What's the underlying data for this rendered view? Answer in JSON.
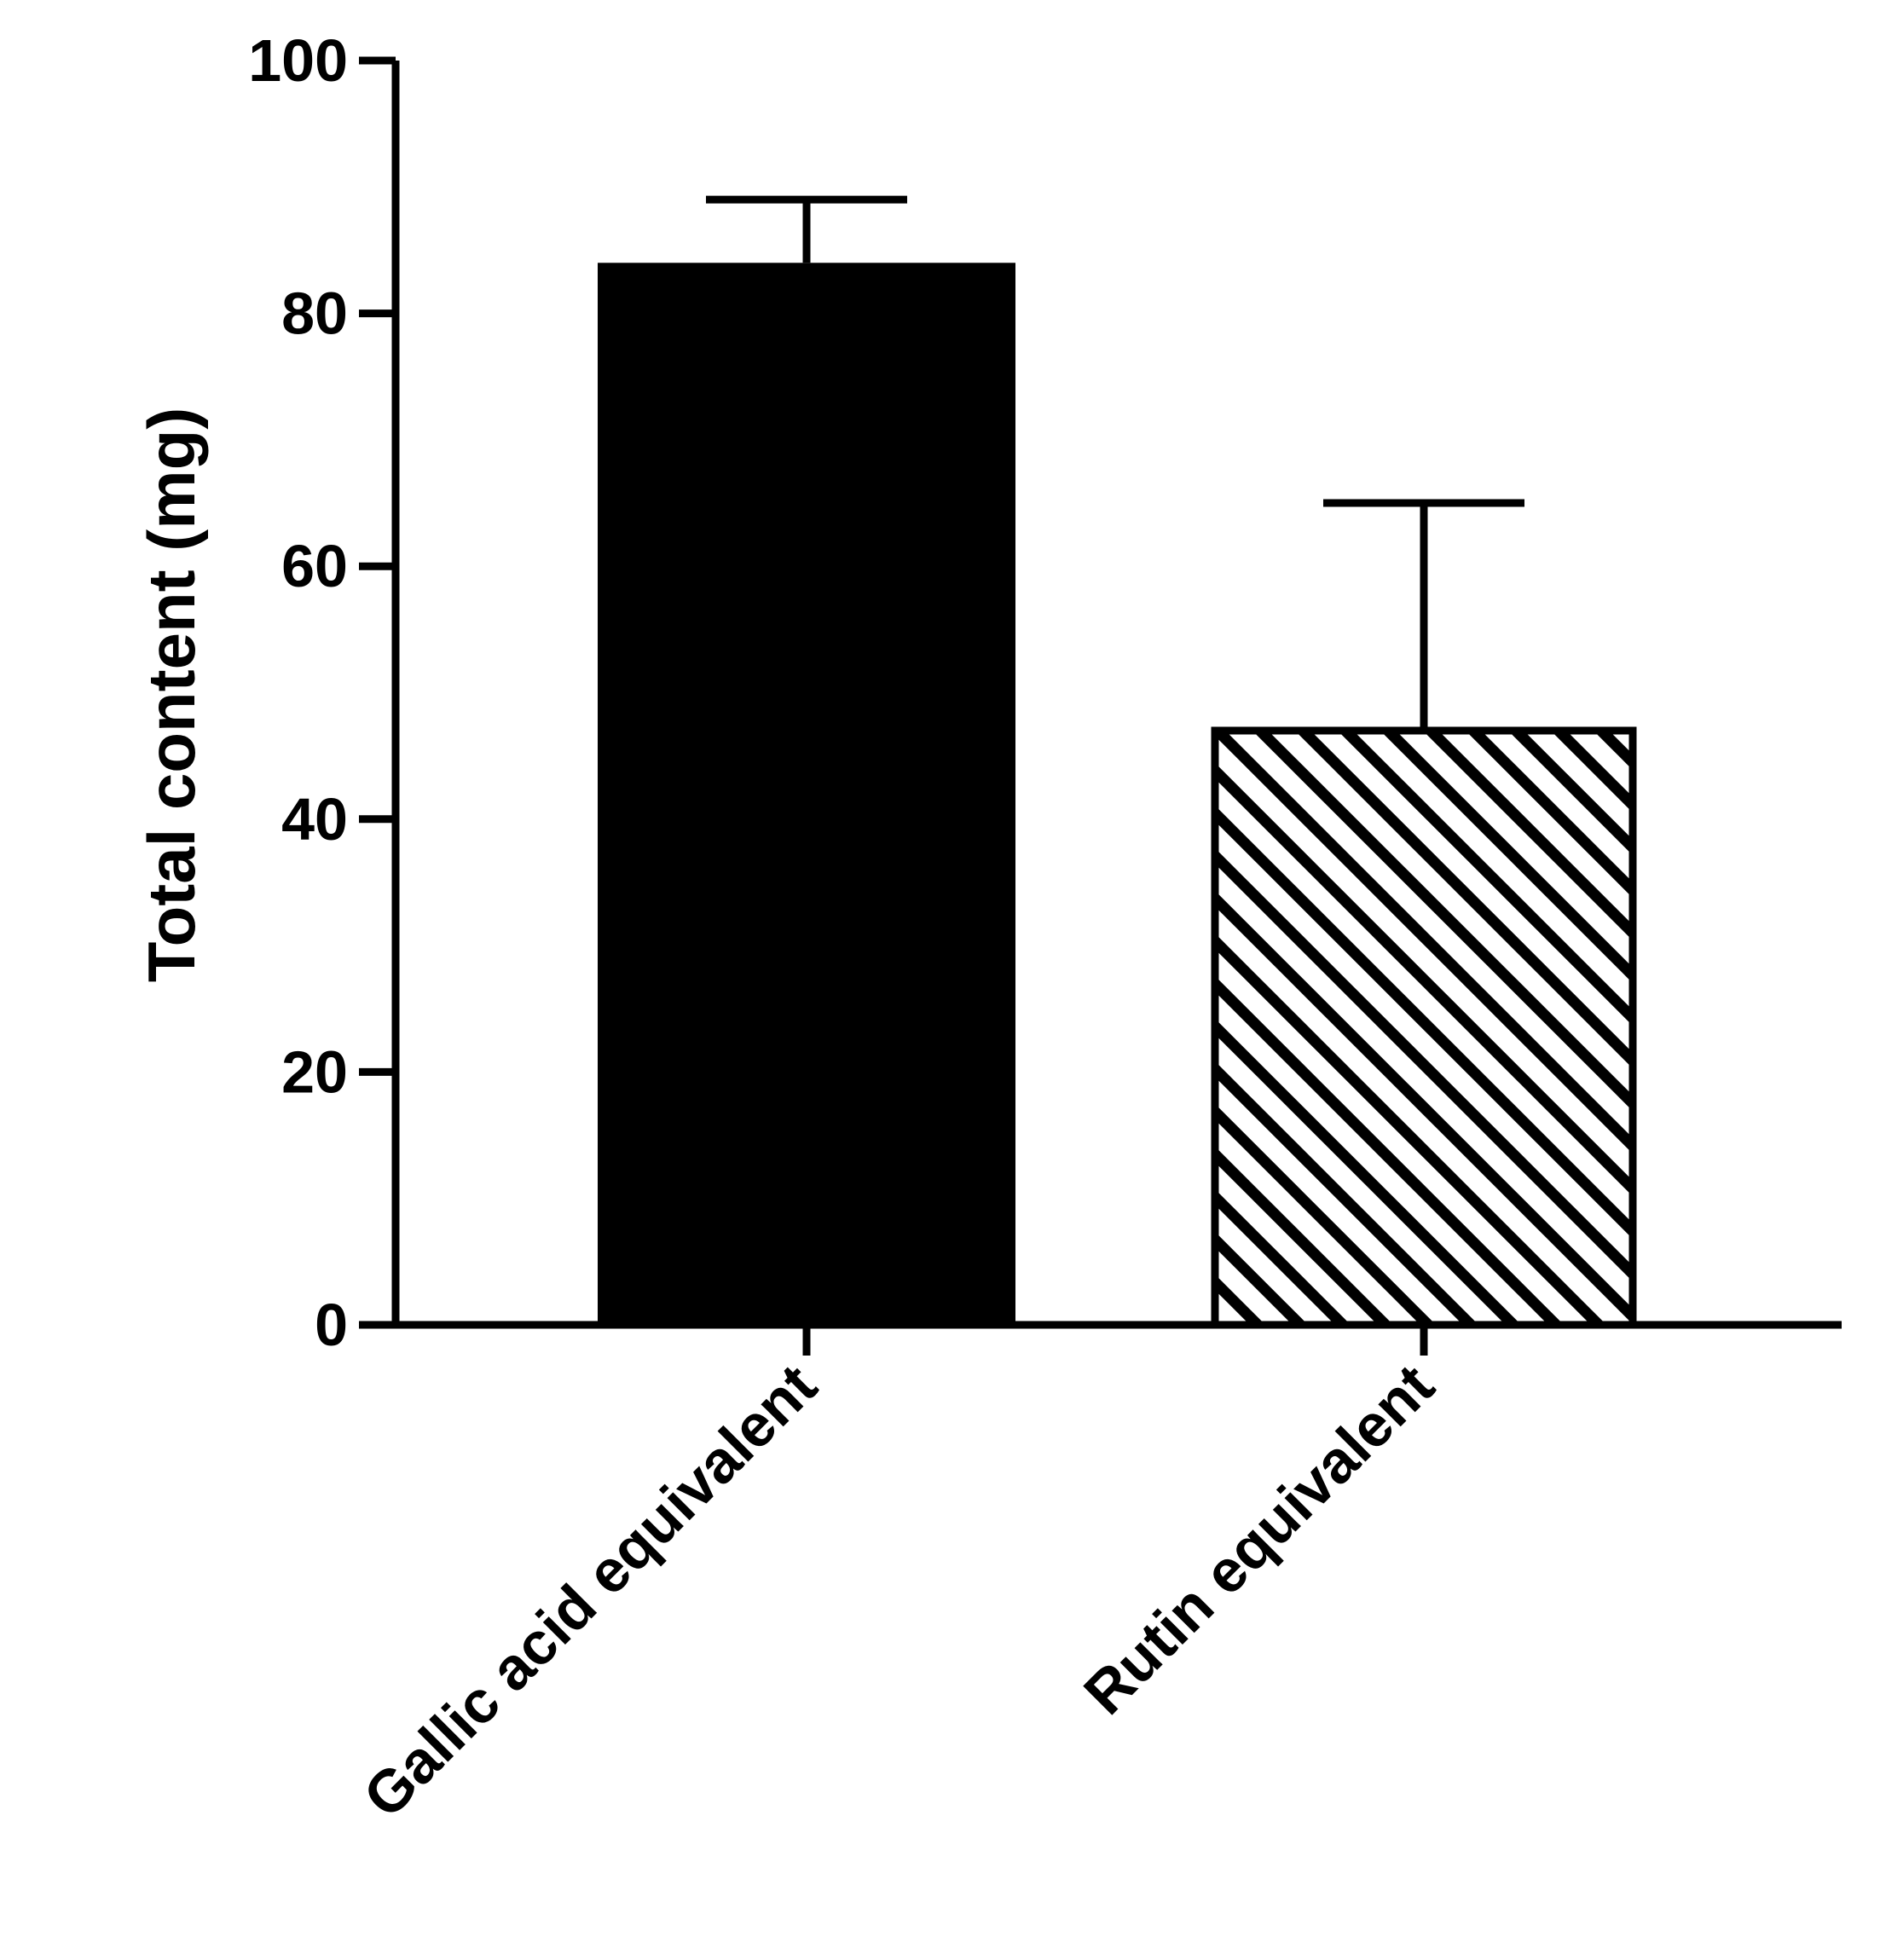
{
  "chart_data": {
    "type": "bar",
    "ylabel": "Total content (mg)",
    "xlabel": "",
    "title": "",
    "ylim": [
      0,
      100
    ],
    "yticks": [
      "0",
      "20",
      "40",
      "60",
      "80",
      "100"
    ],
    "categories": [
      "Gallic acid equivalent",
      "Rutin equivalent"
    ],
    "values": [
      84,
      47
    ],
    "error_upper": [
      5,
      18
    ],
    "bar_fills": [
      "solid",
      "hatched"
    ],
    "colors": {
      "ink": "#000000",
      "background": "#ffffff"
    },
    "grid": false,
    "legend": "none"
  }
}
